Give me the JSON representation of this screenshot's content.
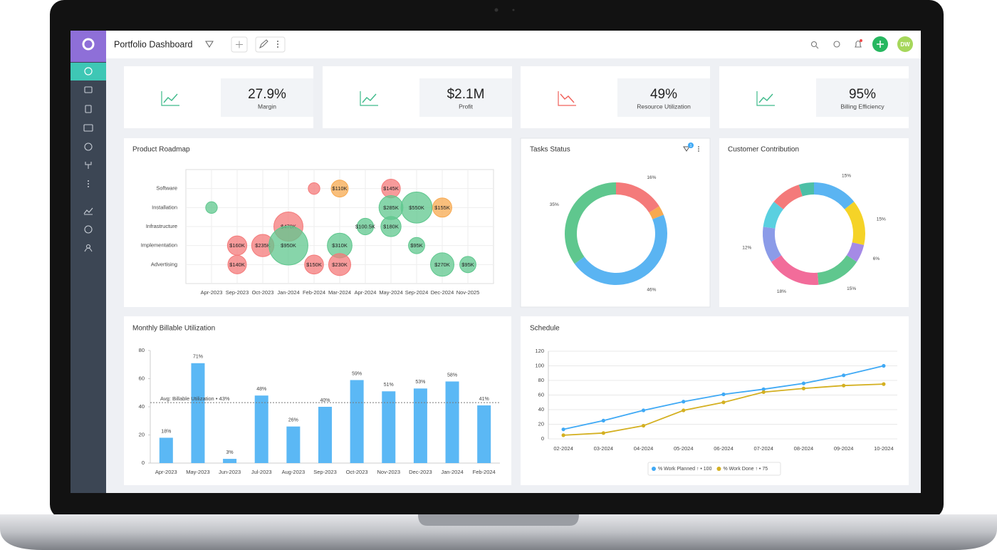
{
  "header": {
    "title": "Portfolio Dashboard",
    "avatar": "DW"
  },
  "kpis": [
    {
      "value": "27.9%",
      "label": "Margin",
      "trend": "up"
    },
    {
      "value": "$2.1M",
      "label": "Profit",
      "trend": "up"
    },
    {
      "value": "49%",
      "label": "Resource Utilization",
      "trend": "down"
    },
    {
      "value": "95%",
      "label": "Billing Efficiency",
      "trend": "up"
    }
  ],
  "badges": {
    "tasks_filter": "1"
  },
  "chart_data": [
    {
      "type": "bubble",
      "title": "Product Roadmap",
      "grid": true,
      "categories": [
        "Apr-2023",
        "Sep-2023",
        "Oct-2023",
        "Jan-2024",
        "Feb-2024",
        "Mar-2024",
        "Apr-2024",
        "May-2024",
        "Sep-2024",
        "Dec-2024",
        "Nov-2025"
      ],
      "series": [
        {
          "name": "Software",
          "values": [
            null,
            null,
            null,
            null,
            30000,
            110000,
            null,
            145000,
            null,
            null,
            null
          ],
          "value_labels": [
            null,
            null,
            null,
            null,
            null,
            "$110K",
            null,
            "$145K",
            null,
            null,
            null
          ],
          "colors": [
            null,
            null,
            null,
            null,
            "#f47a7a",
            "#f7a950",
            null,
            "#f47a7a",
            null,
            null,
            null
          ]
        },
        {
          "name": "Installation",
          "values": [
            30000,
            null,
            null,
            null,
            null,
            null,
            null,
            285000,
            550000,
            155000,
            null
          ],
          "value_labels": [
            null,
            null,
            null,
            null,
            null,
            null,
            null,
            "$285K",
            "$550K",
            "$155K",
            null
          ],
          "colors": [
            "#5fc78e",
            null,
            null,
            null,
            null,
            null,
            null,
            "#5fc78e",
            "#5fc78e",
            "#f7a950",
            null
          ]
        },
        {
          "name": "Infrastructure",
          "values": [
            null,
            null,
            null,
            470000,
            null,
            null,
            100500,
            180000,
            null,
            null,
            null
          ],
          "value_labels": [
            null,
            null,
            null,
            "$470K",
            null,
            null,
            "$100.5K",
            "$180K",
            null,
            null,
            null
          ],
          "colors": [
            null,
            null,
            null,
            "#f47a7a",
            null,
            null,
            "#5fc78e",
            "#5fc78e",
            null,
            null,
            null
          ]
        },
        {
          "name": "Implementation",
          "values": [
            null,
            160000,
            235000,
            950000,
            null,
            310000,
            null,
            null,
            95000,
            null,
            null
          ],
          "value_labels": [
            null,
            "$160K",
            "$235K",
            "$950K",
            null,
            "$310K",
            null,
            null,
            "$95K",
            null,
            null
          ],
          "colors": [
            null,
            "#f47a7a",
            "#f47a7a",
            "#5fc78e",
            null,
            "#5fc78e",
            null,
            null,
            "#5fc78e",
            null,
            null
          ]
        },
        {
          "name": "Advertising",
          "values": [
            null,
            140000,
            null,
            null,
            150000,
            230000,
            null,
            null,
            null,
            270000,
            95000
          ],
          "value_labels": [
            null,
            "$140K",
            null,
            null,
            "$150K",
            "$230K",
            null,
            null,
            null,
            "$270K",
            "$95K"
          ],
          "colors": [
            null,
            "#f47a7a",
            null,
            null,
            "#f47a7a",
            "#f47a7a",
            null,
            null,
            null,
            "#5fc78e",
            "#5fc78e"
          ]
        }
      ]
    },
    {
      "type": "donut",
      "title": "Tasks Status",
      "values": [
        16,
        3,
        46,
        35
      ],
      "value_labels": [
        "16%",
        null,
        "46%",
        "35%"
      ],
      "colors": [
        "#f47a7a",
        "#f7a950",
        "#5ab4f2",
        "#5fc78e"
      ]
    },
    {
      "type": "donut",
      "title": "Customer Contribution",
      "values": [
        15,
        15,
        6,
        15,
        18,
        12,
        9,
        10,
        5
      ],
      "value_labels": [
        "15%",
        "15%",
        "6%",
        "15%",
        "18%",
        "12%",
        null,
        null,
        null
      ],
      "colors": [
        "#5ab4f2",
        "#f5d327",
        "#a58ae6",
        "#5fc78e",
        "#f26c9a",
        "#8b9be8",
        "#5ad0e0",
        "#f47a7a",
        "#4cbfa6"
      ]
    },
    {
      "type": "bar",
      "title": "Monthly Billable Utilization",
      "color": "#5bb8f5",
      "grid": false,
      "categories": [
        "Apr-2023",
        "May-2023",
        "Jun-2023",
        "Jul-2023",
        "Aug-2023",
        "Sep-2023",
        "Oct-2023",
        "Nov-2023",
        "Dec-2023",
        "Jan-2024",
        "Feb-2024"
      ],
      "values": [
        18,
        71,
        3,
        48,
        26,
        40,
        59,
        51,
        53,
        58,
        41
      ],
      "value_labels": [
        "18%",
        "71%",
        "3%",
        "48%",
        "26%",
        "40%",
        "59%",
        "51%",
        "53%",
        "58%",
        "41%"
      ],
      "ylim": [
        0,
        80
      ],
      "yticks": [
        0,
        20,
        40,
        60,
        80
      ],
      "annotation": {
        "text": "Avg: Billable Utilization • 43%",
        "value": 43
      }
    },
    {
      "type": "line",
      "title": "Schedule",
      "grid": true,
      "x": [
        "02-2024",
        "03-2024",
        "04-2024",
        "05-2024",
        "06-2024",
        "07-2024",
        "08-2024",
        "09-2024",
        "10-2024"
      ],
      "series": [
        {
          "name": "% Work Planned ↑ • 100",
          "color": "#3fa9f5",
          "values": [
            13,
            25,
            39,
            51,
            61,
            68,
            76,
            87,
            100
          ]
        },
        {
          "name": "% Work Done ↑ • 75",
          "color": "#d4b021",
          "values": [
            5,
            8,
            18,
            39,
            50,
            64,
            69,
            73,
            75
          ]
        }
      ],
      "ylim": [
        0,
        120
      ],
      "yticks": [
        0,
        20,
        40,
        60,
        80,
        100,
        120
      ]
    }
  ]
}
